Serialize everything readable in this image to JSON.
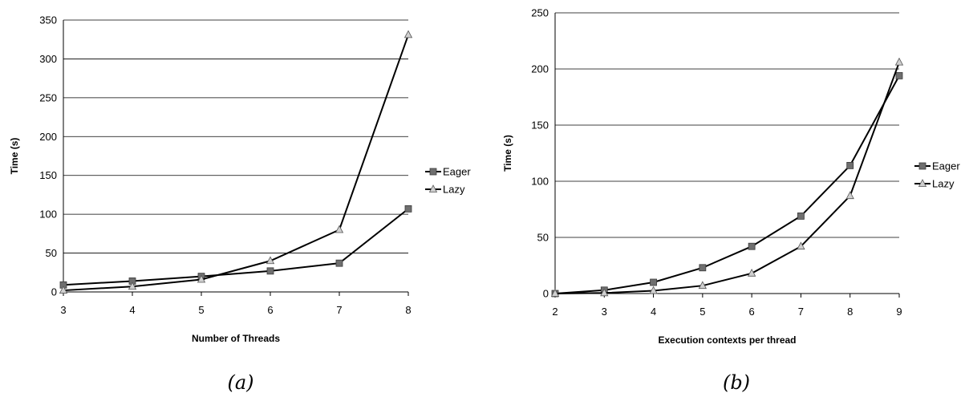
{
  "chart_data": [
    {
      "type": "line",
      "caption": "(a)",
      "title": "",
      "xlabel": "Number of Threads",
      "ylabel": "Time (s)",
      "x": [
        3,
        4,
        5,
        6,
        7,
        8
      ],
      "xlim": [
        3,
        8
      ],
      "ylim": [
        0,
        350
      ],
      "yticks": [
        0,
        50,
        100,
        150,
        200,
        250,
        300,
        350
      ],
      "grid": true,
      "legend_position": "right",
      "series": [
        {
          "name": "Eager",
          "marker": "square",
          "values": [
            9,
            14,
            20,
            27,
            37,
            107
          ]
        },
        {
          "name": "Lazy",
          "marker": "triangle",
          "values": [
            2,
            7,
            16,
            40,
            80,
            331
          ]
        }
      ]
    },
    {
      "type": "line",
      "caption": "(b)",
      "title": "",
      "xlabel": "Execution contexts per thread",
      "ylabel": "Time (s)",
      "x": [
        2,
        3,
        4,
        5,
        6,
        7,
        8,
        9
      ],
      "xlim": [
        2,
        9
      ],
      "ylim": [
        0,
        250
      ],
      "yticks": [
        0,
        50,
        100,
        150,
        200,
        250
      ],
      "grid": true,
      "legend_position": "right",
      "series": [
        {
          "name": "Eager",
          "marker": "square",
          "values": [
            0,
            3,
            10,
            23,
            42,
            69,
            114,
            194
          ]
        },
        {
          "name": "Lazy",
          "marker": "triangle",
          "values": [
            0,
            0.5,
            2.5,
            7,
            18,
            42,
            87,
            206
          ]
        }
      ]
    }
  ]
}
